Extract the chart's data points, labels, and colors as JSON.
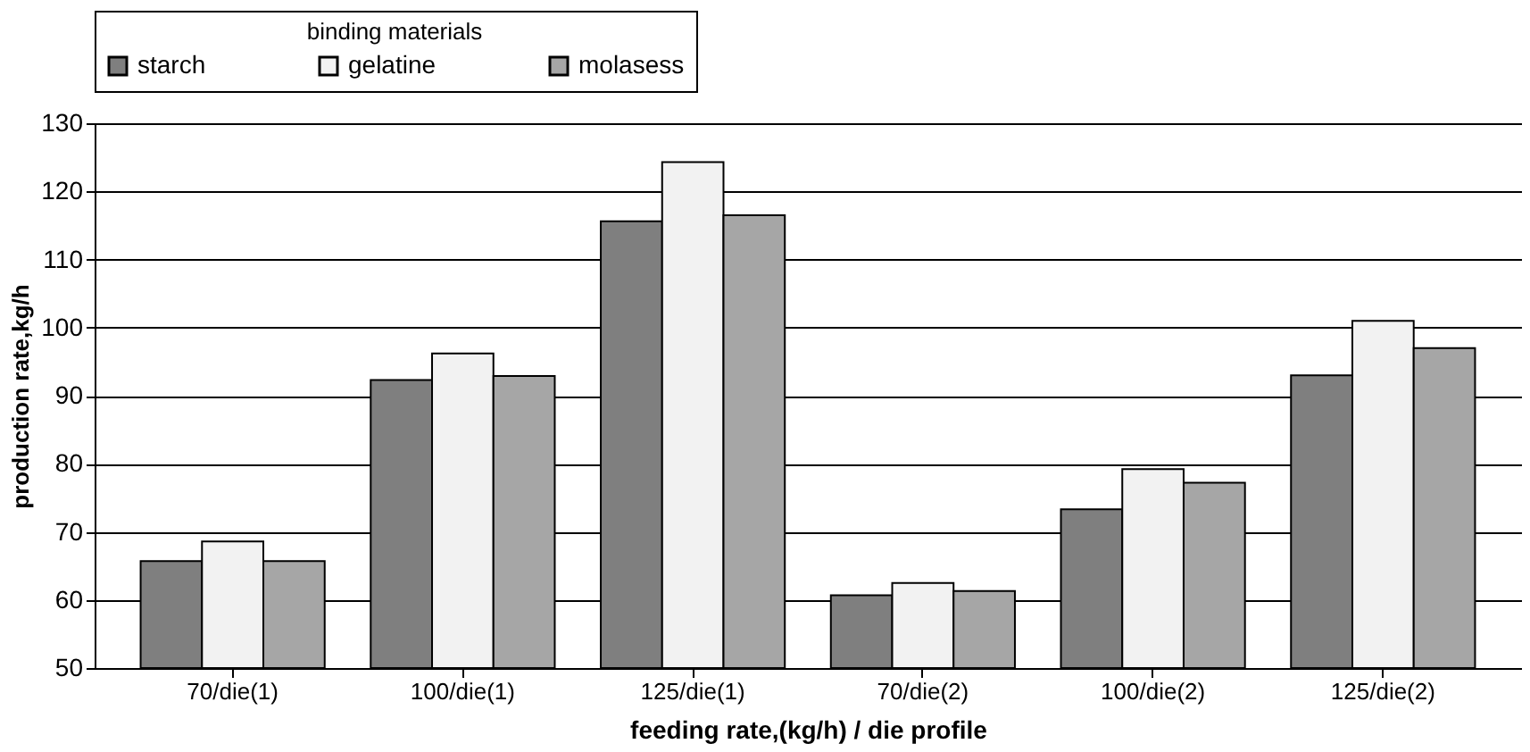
{
  "chart_data": {
    "type": "bar",
    "xlabel": "feeding rate,(kg/h) / die profile",
    "ylabel": "production rate,kg/h",
    "legend_title": "binding materials",
    "categories": [
      "70/die(1)",
      "100/die(1)",
      "125/die(1)",
      "70/die(2)",
      "100/die(2)",
      "125/die(2)"
    ],
    "series": [
      {
        "name": "starch",
        "color": "#7f7f7f",
        "values": [
          65.7,
          92.3,
          115.6,
          60.7,
          73.3,
          93.0
        ]
      },
      {
        "name": "gelatine",
        "color": "#f2f2f2",
        "values": [
          68.6,
          96.2,
          124.3,
          62.5,
          79.2,
          101.0
        ]
      },
      {
        "name": "molasess",
        "color": "#a6a6a6",
        "values": [
          65.7,
          92.9,
          116.5,
          61.3,
          77.2,
          97.0
        ]
      }
    ],
    "ylim": [
      50,
      130
    ],
    "yticks": [
      50,
      60,
      70,
      80,
      90,
      100,
      110,
      120,
      130
    ],
    "grid": "y",
    "legend": "top"
  }
}
